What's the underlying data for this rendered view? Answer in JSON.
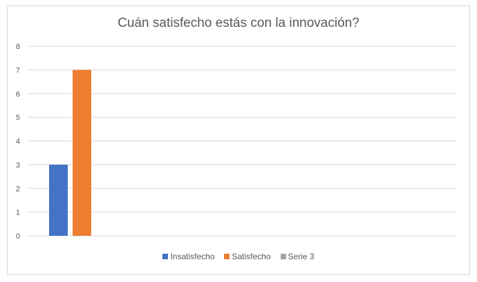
{
  "chart_data": {
    "type": "bar",
    "title": "Cuán satisfecho estás con la innovación?",
    "categories": [
      "",
      "",
      "",
      ""
    ],
    "series": [
      {
        "name": "Insatisfecho",
        "color": "#4472c4",
        "values": [
          3,
          null,
          null,
          null
        ]
      },
      {
        "name": "Satisfecho",
        "color": "#ed7d31",
        "values": [
          7,
          null,
          null,
          null
        ]
      },
      {
        "name": "Serie 3",
        "color": "#a5a5a5",
        "values": [
          null,
          null,
          null,
          null
        ]
      }
    ],
    "yticks": [
      "0",
      "1",
      "2",
      "3",
      "4",
      "5",
      "6",
      "7",
      "8"
    ],
    "ylim": [
      0,
      8
    ],
    "grid": true,
    "legend": "bottom"
  }
}
